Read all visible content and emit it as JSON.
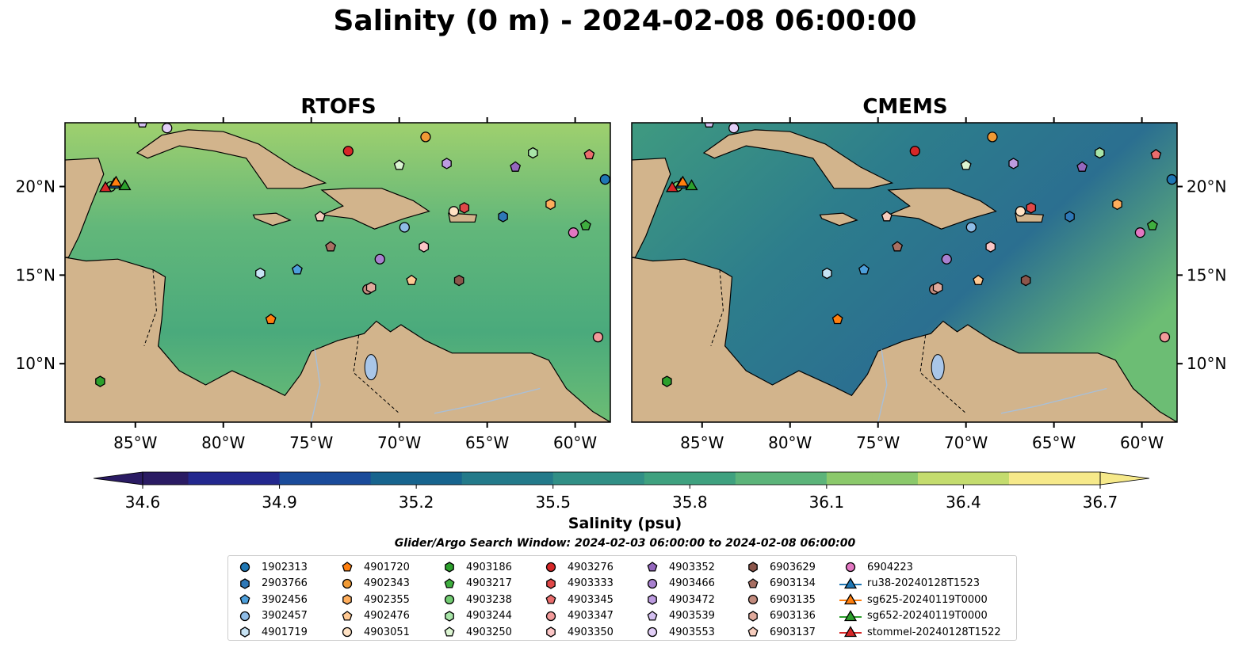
{
  "title": "Salinity (0 m) - 2024-02-08 06:00:00",
  "panels": [
    {
      "title": "RTOFS"
    },
    {
      "title": "CMEMS"
    }
  ],
  "axes": {
    "lon_ticks": [
      "85°W",
      "80°W",
      "75°W",
      "70°W",
      "65°W",
      "60°W"
    ],
    "lat_ticks": [
      "20°N",
      "15°N",
      "10°N"
    ],
    "lon_range": [
      -89.0,
      -58.0
    ],
    "lat_range": [
      6.7,
      23.6
    ]
  },
  "colorbar": {
    "label": "Salinity (psu)",
    "ticks": [
      "34.6",
      "34.9",
      "35.2",
      "35.5",
      "35.8",
      "36.1",
      "36.4",
      "36.7"
    ],
    "range": [
      34.6,
      36.7
    ],
    "colormap": [
      "#2a1b63",
      "#23288e",
      "#1a4b9a",
      "#17648e",
      "#237a8a",
      "#318f86",
      "#3fa17f",
      "#5cb47a",
      "#8bc96b",
      "#c4dc6e",
      "#f6e98a"
    ],
    "extend": "both"
  },
  "search_window": "Glider/Argo Search Window: 2024-02-03 06:00:00 to 2024-02-08 06:00:00",
  "colors": {
    "land": "#d2b48c",
    "pacific": "#2a1b63",
    "lake": "#a9c6e8",
    "river": "#a8bfd8"
  },
  "legend": [
    {
      "label": "1902313",
      "marker": "circle",
      "color": "#1f77b4"
    },
    {
      "label": "2903766",
      "marker": "hexagon",
      "color": "#2e78b7"
    },
    {
      "label": "3902456",
      "marker": "pentagon",
      "color": "#4d9fdb"
    },
    {
      "label": "3902457",
      "marker": "circle",
      "color": "#8fbce6"
    },
    {
      "label": "4901719",
      "marker": "hexagon",
      "color": "#c7e3f4"
    },
    {
      "label": "4901720",
      "marker": "pentagon",
      "color": "#ff7f0e"
    },
    {
      "label": "4902343",
      "marker": "circle",
      "color": "#f09a35"
    },
    {
      "label": "4902355",
      "marker": "hexagon",
      "color": "#ffae5c"
    },
    {
      "label": "4902476",
      "marker": "pentagon",
      "color": "#ffc993"
    },
    {
      "label": "4903051",
      "marker": "circle",
      "color": "#ffe2c4"
    },
    {
      "label": "4903186",
      "marker": "hexagon",
      "color": "#2ca02c"
    },
    {
      "label": "4903217",
      "marker": "pentagon",
      "color": "#3fae3f"
    },
    {
      "label": "4903238",
      "marker": "circle",
      "color": "#72cc72"
    },
    {
      "label": "4903244",
      "marker": "hexagon",
      "color": "#a8e5a8"
    },
    {
      "label": "4903250",
      "marker": "pentagon",
      "color": "#dcf5d2"
    },
    {
      "label": "4903276",
      "marker": "circle",
      "color": "#d62728"
    },
    {
      "label": "4903333",
      "marker": "hexagon",
      "color": "#e04848"
    },
    {
      "label": "4903345",
      "marker": "pentagon",
      "color": "#ea6d6d"
    },
    {
      "label": "4903347",
      "marker": "circle",
      "color": "#f29a9a"
    },
    {
      "label": "4903350",
      "marker": "hexagon",
      "color": "#fbc6c6"
    },
    {
      "label": "4903352",
      "marker": "pentagon",
      "color": "#9467bd"
    },
    {
      "label": "4903466",
      "marker": "circle",
      "color": "#a880cf"
    },
    {
      "label": "4903472",
      "marker": "hexagon",
      "color": "#bc9be0"
    },
    {
      "label": "4903539",
      "marker": "pentagon",
      "color": "#d3bff0"
    },
    {
      "label": "4903553",
      "marker": "circle",
      "color": "#e2cff7"
    },
    {
      "label": "6903629",
      "marker": "hexagon",
      "color": "#8c564b"
    },
    {
      "label": "6903134",
      "marker": "pentagon",
      "color": "#a86f62"
    },
    {
      "label": "6903135",
      "marker": "circle",
      "color": "#c28b7e"
    },
    {
      "label": "6903136",
      "marker": "hexagon",
      "color": "#e0aa9c"
    },
    {
      "label": "6903137",
      "marker": "pentagon",
      "color": "#f6cdbd"
    },
    {
      "label": "6904223",
      "marker": "circle",
      "color": "#e377c2"
    },
    {
      "label": "ru38-20240128T1523",
      "marker": "triangle-line",
      "color": "#1f77b4"
    },
    {
      "label": "sg625-20240119T0000",
      "marker": "triangle-line",
      "color": "#ff7f0e"
    },
    {
      "label": "sg652-20240119T0000",
      "marker": "triangle-line",
      "color": "#2ca02c"
    },
    {
      "label": "stommel-20240128T1522",
      "marker": "triangle-line",
      "color": "#d62728"
    }
  ],
  "platforms": [
    {
      "id": "1902313",
      "lon": -58.3,
      "lat": 20.4,
      "marker": "circle",
      "color": "#1f77b4"
    },
    {
      "id": "2903766",
      "lon": -64.1,
      "lat": 18.3,
      "marker": "hexagon",
      "color": "#2e78b7"
    },
    {
      "id": "3902456",
      "lon": -75.8,
      "lat": 15.3,
      "marker": "pentagon",
      "color": "#4d9fdb"
    },
    {
      "id": "3902457",
      "lon": -69.7,
      "lat": 17.7,
      "marker": "circle",
      "color": "#8fbce6"
    },
    {
      "id": "4901719",
      "lon": -77.9,
      "lat": 15.1,
      "marker": "hexagon",
      "color": "#c7e3f4"
    },
    {
      "id": "4901720",
      "lon": -77.3,
      "lat": 12.5,
      "marker": "pentagon",
      "color": "#ff7f0e"
    },
    {
      "id": "4902343",
      "lon": -68.5,
      "lat": 22.8,
      "marker": "circle",
      "color": "#f09a35"
    },
    {
      "id": "4902355",
      "lon": -61.4,
      "lat": 19.0,
      "marker": "hexagon",
      "color": "#ffae5c"
    },
    {
      "id": "4902476",
      "lon": -69.3,
      "lat": 14.7,
      "marker": "pentagon",
      "color": "#ffc993"
    },
    {
      "id": "4903051",
      "lon": -66.9,
      "lat": 18.6,
      "marker": "circle",
      "color": "#ffe2c4"
    },
    {
      "id": "4903186",
      "lon": -87.0,
      "lat": 9.0,
      "marker": "hexagon",
      "color": "#2ca02c"
    },
    {
      "id": "4903217",
      "lon": -59.4,
      "lat": 17.8,
      "marker": "pentagon",
      "color": "#3fae3f"
    },
    {
      "id": "4903238",
      "lon": -86.4,
      "lat": 20.0,
      "marker": "circle",
      "color": "#72cc72"
    },
    {
      "id": "4903244",
      "lon": -62.4,
      "lat": 21.9,
      "marker": "hexagon",
      "color": "#a8e5a8"
    },
    {
      "id": "4903250",
      "lon": -70.0,
      "lat": 21.2,
      "marker": "pentagon",
      "color": "#dcf5d2"
    },
    {
      "id": "4903276",
      "lon": -72.9,
      "lat": 22.0,
      "marker": "circle",
      "color": "#d62728"
    },
    {
      "id": "4903333",
      "lon": -66.3,
      "lat": 18.8,
      "marker": "hexagon",
      "color": "#e04848"
    },
    {
      "id": "4903345",
      "lon": -59.2,
      "lat": 21.8,
      "marker": "pentagon",
      "color": "#ea6d6d"
    },
    {
      "id": "4903347",
      "lon": -58.7,
      "lat": 11.5,
      "marker": "circle",
      "color": "#f29a9a"
    },
    {
      "id": "4903350",
      "lon": -68.6,
      "lat": 16.6,
      "marker": "hexagon",
      "color": "#fbc6c6"
    },
    {
      "id": "4903352",
      "lon": -63.4,
      "lat": 21.1,
      "marker": "pentagon",
      "color": "#9467bd"
    },
    {
      "id": "4903466",
      "lon": -71.1,
      "lat": 15.9,
      "marker": "circle",
      "color": "#a880cf"
    },
    {
      "id": "4903472",
      "lon": -67.3,
      "lat": 21.3,
      "marker": "hexagon",
      "color": "#bc9be0"
    },
    {
      "id": "4903539",
      "lon": -84.6,
      "lat": 23.6,
      "marker": "pentagon",
      "color": "#d3bff0"
    },
    {
      "id": "4903553",
      "lon": -83.2,
      "lat": 23.3,
      "marker": "circle",
      "color": "#e2cff7"
    },
    {
      "id": "6903629",
      "lon": -66.6,
      "lat": 14.7,
      "marker": "hexagon",
      "color": "#8c564b"
    },
    {
      "id": "6903134",
      "lon": -73.9,
      "lat": 16.6,
      "marker": "pentagon",
      "color": "#a86f62"
    },
    {
      "id": "6903135",
      "lon": -71.8,
      "lat": 14.2,
      "marker": "circle",
      "color": "#c28b7e"
    },
    {
      "id": "6903136",
      "lon": -71.6,
      "lat": 14.3,
      "marker": "hexagon",
      "color": "#e0aa9c"
    },
    {
      "id": "6903137",
      "lon": -74.5,
      "lat": 18.3,
      "marker": "pentagon",
      "color": "#f6cdbd"
    },
    {
      "id": "6904223",
      "lon": -60.1,
      "lat": 17.4,
      "marker": "circle",
      "color": "#e377c2"
    },
    {
      "id": "ru38-20240128T1523",
      "lon": -86.2,
      "lat": 20.1,
      "marker": "triangle",
      "color": "#1f77b4"
    },
    {
      "id": "sg625-20240119T0000",
      "lon": -86.1,
      "lat": 20.2,
      "marker": "triangle",
      "color": "#ff7f0e"
    },
    {
      "id": "sg652-20240119T0000",
      "lon": -85.6,
      "lat": 20.0,
      "marker": "triangle",
      "color": "#2ca02c"
    },
    {
      "id": "stommel-20240128T1522",
      "lon": -86.7,
      "lat": 19.9,
      "marker": "triangle",
      "color": "#d62728"
    }
  ]
}
